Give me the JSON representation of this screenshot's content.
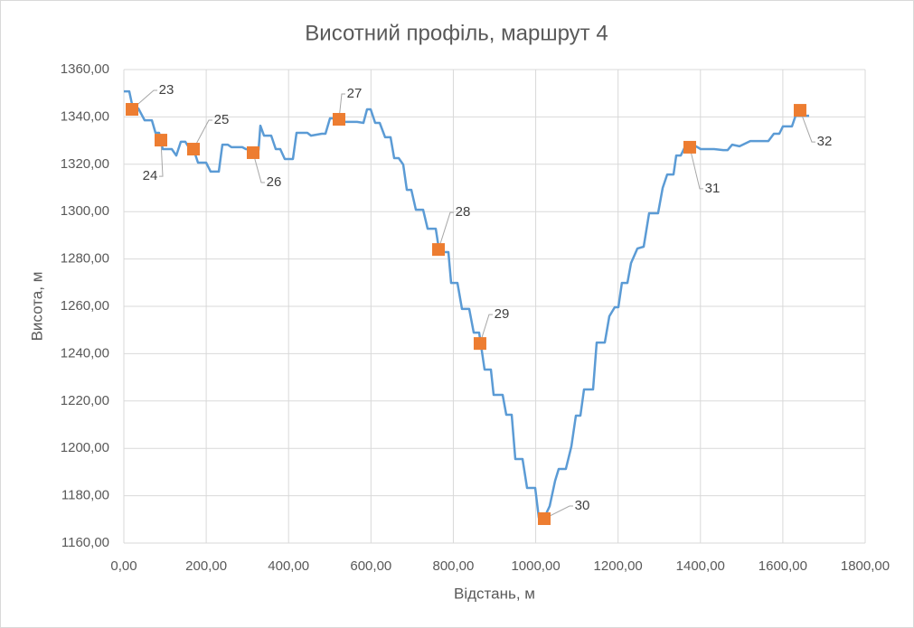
{
  "chart_data": {
    "type": "line",
    "title": "Висотний профіль, маршрут 4",
    "x_label": "Відстань, м",
    "y_label": "Висота, м",
    "xlim": [
      0,
      1800
    ],
    "ylim": [
      1160,
      1360
    ],
    "grid": true,
    "xticks": [
      {
        "value": 0,
        "label": "0,00"
      },
      {
        "value": 200,
        "label": "200,00"
      },
      {
        "value": 400,
        "label": "400,00"
      },
      {
        "value": 600,
        "label": "600,00"
      },
      {
        "value": 800,
        "label": "800,00"
      },
      {
        "value": 1000,
        "label": "1000,00"
      },
      {
        "value": 1200,
        "label": "1200,00"
      },
      {
        "value": 1400,
        "label": "1400,00"
      },
      {
        "value": 1600,
        "label": "1600,00"
      },
      {
        "value": 1800,
        "label": "1800,00"
      }
    ],
    "yticks": [
      {
        "value": 1160,
        "label": "1160,00"
      },
      {
        "value": 1180,
        "label": "1180,00"
      },
      {
        "value": 1200,
        "label": "1200,00"
      },
      {
        "value": 1220,
        "label": "1220,00"
      },
      {
        "value": 1240,
        "label": "1240,00"
      },
      {
        "value": 1260,
        "label": "1260,00"
      },
      {
        "value": 1280,
        "label": "1280,00"
      },
      {
        "value": 1300,
        "label": "1300,00"
      },
      {
        "value": 1320,
        "label": "1320,00"
      },
      {
        "value": 1340,
        "label": "1340,00"
      },
      {
        "value": 1360,
        "label": "1360,00"
      }
    ],
    "series": [
      {
        "type": "line",
        "color": "#5b9bd5",
        "x": [
          0,
          13.2,
          22,
          35.1,
          50.5,
          68,
          76.8,
          85.6,
          94.4,
          116.3,
          127.3,
          138.3,
          149.3,
          160.2,
          169,
          180,
          199.7,
          210.7,
          230.5,
          239.3,
          252.4,
          261.2,
          287.5,
          296.3,
          327.1,
          331.4,
          340.2,
          357.8,
          368.8,
          379.7,
          390.7,
          410.5,
          419.3,
          445.6,
          454.4,
          480.8,
          489.5,
          500.5,
          520.2,
          533.4,
          566.3,
          581.7,
          590.5,
          599.2,
          610.2,
          621.2,
          634.4,
          647.5,
          656.3,
          667.3,
          678.3,
          687.1,
          698,
          709,
          726.6,
          737.5,
          757.3,
          766.1,
          788,
          794.6,
          810,
          820.9,
          838.5,
          849.5,
          862.6,
          875.8,
          891.2,
          897.8,
          919.7,
          928.5,
          941.7,
          950.5,
          968,
          979,
          998.7,
          1007.5,
          1020.7,
          1033.8,
          1047,
          1055.8,
          1073.3,
          1086.5,
          1097.5,
          1108.5,
          1117.3,
          1139.2,
          1148,
          1167.7,
          1178.7,
          1191.9,
          1200.7,
          1209.4,
          1222.6,
          1231.4,
          1246.8,
          1262.1,
          1275.3,
          1297.2,
          1308.2,
          1319.2,
          1334.6,
          1341.2,
          1352.1,
          1363.1,
          1389.4,
          1400.4,
          1433.3,
          1455.3,
          1466.2,
          1477.2,
          1494.8,
          1521.1,
          1565,
          1578.2,
          1591.4,
          1600.2,
          1622.1,
          1630.9,
          1663.8
        ],
        "values": [
          1350.8,
          1350.8,
          1343.6,
          1343.6,
          1338.6,
          1338.6,
          1333.3,
          1333.3,
          1326.4,
          1326.4,
          1323.7,
          1329.5,
          1329.5,
          1326.4,
          1326.4,
          1320.7,
          1320.7,
          1316.9,
          1316.9,
          1328.3,
          1328.3,
          1327.2,
          1327.2,
          1326.4,
          1326.0,
          1336.3,
          1332.1,
          1332.1,
          1326.4,
          1326.4,
          1322.2,
          1322.2,
          1333.3,
          1333.3,
          1332.1,
          1332.9,
          1332.9,
          1339.4,
          1339.4,
          1337.9,
          1337.9,
          1337.5,
          1343.2,
          1343.2,
          1337.5,
          1337.5,
          1331.4,
          1331.4,
          1322.6,
          1322.6,
          1319.9,
          1309.2,
          1309.2,
          1300.8,
          1300.8,
          1292.8,
          1292.8,
          1282.9,
          1282.9,
          1269.9,
          1269.9,
          1258.9,
          1258.9,
          1248.9,
          1248.9,
          1233.3,
          1233.3,
          1222.6,
          1222.6,
          1214.2,
          1214.2,
          1195.5,
          1195.5,
          1183.3,
          1183.3,
          1170.7,
          1170.7,
          1175.6,
          1186.3,
          1191.3,
          1191.3,
          1200.8,
          1213.8,
          1213.8,
          1224.9,
          1224.9,
          1244.7,
          1244.7,
          1255.8,
          1259.6,
          1259.6,
          1269.9,
          1269.9,
          1278.3,
          1284.4,
          1285.2,
          1299.3,
          1299.3,
          1310.0,
          1315.7,
          1315.7,
          1323.7,
          1323.7,
          1327.6,
          1327.6,
          1326.4,
          1326.4,
          1326.0,
          1326.0,
          1328.3,
          1327.6,
          1329.8,
          1329.8,
          1332.9,
          1332.9,
          1336.0,
          1336.0,
          1340.5,
          1340.5
        ]
      },
      {
        "type": "scatter",
        "color": "#ed7d31",
        "x": [
          19.8,
          90,
          169,
          313.9,
          522.4,
          763.9,
          864.8,
          1020.7,
          1374.1,
          1641.9
        ],
        "values": [
          1343.2,
          1330.2,
          1326.4,
          1324.9,
          1339.0,
          1284.0,
          1244.3,
          1170.3,
          1327.2,
          1342.8
        ],
        "labels": [
          "23",
          "24",
          "25",
          "26",
          "27",
          "28",
          "29",
          "30",
          "31",
          "32"
        ]
      }
    ]
  }
}
